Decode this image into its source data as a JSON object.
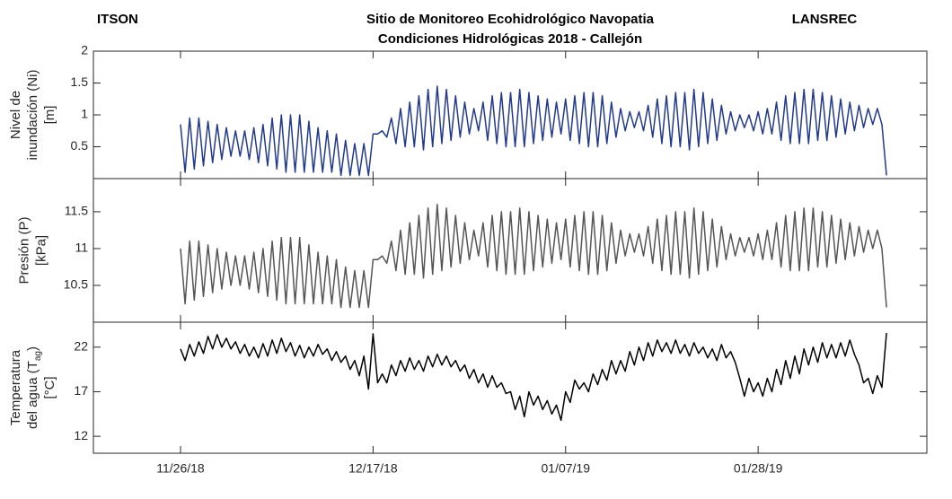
{
  "chart_data": {
    "type": "line",
    "left_label": "ITSON",
    "title": "Sitio de Monitoreo Ecohidrológico Navopatia",
    "subtitle": "Condiciones Hidrológicas 2018 - Callejón",
    "right_label": "LANSREC",
    "xlim": [
      -9.5,
      81.4
    ],
    "xticks": [
      {
        "value": 0,
        "label": "11/26/18"
      },
      {
        "value": 21,
        "label": "12/17/18"
      },
      {
        "value": 42,
        "label": "01/07/19"
      },
      {
        "value": 63,
        "label": "01/28/19"
      }
    ],
    "x": [
      0,
      0.5,
      1,
      1.5,
      2,
      2.5,
      3,
      3.5,
      4,
      4.5,
      5,
      5.5,
      6,
      6.5,
      7,
      7.5,
      8,
      8.5,
      9,
      9.5,
      10,
      10.5,
      11,
      11.5,
      12,
      12.5,
      13,
      13.5,
      14,
      14.5,
      15,
      15.5,
      16,
      16.5,
      17,
      17.5,
      18,
      18.5,
      19,
      19.5,
      20,
      20.5,
      21,
      21.5,
      22,
      22.5,
      23,
      23.5,
      24,
      24.5,
      25,
      25.5,
      26,
      26.5,
      27,
      27.5,
      28,
      28.5,
      29,
      29.5,
      30,
      30.5,
      31,
      31.5,
      32,
      32.5,
      33,
      33.5,
      34,
      34.5,
      35,
      35.5,
      36,
      36.5,
      37,
      37.5,
      38,
      38.5,
      39,
      39.5,
      40,
      40.5,
      41,
      41.5,
      42,
      42.5,
      43,
      43.5,
      44,
      44.5,
      45,
      45.5,
      46,
      46.5,
      47,
      47.5,
      48,
      48.5,
      49,
      49.5,
      50,
      50.5,
      51,
      51.5,
      52,
      52.5,
      53,
      53.5,
      54,
      54.5,
      55,
      55.5,
      56,
      56.5,
      57,
      57.5,
      58,
      58.5,
      59,
      59.5,
      60,
      60.5,
      61,
      61.5,
      62,
      62.5,
      63,
      63.5,
      64,
      64.5,
      65,
      65.5,
      66,
      66.5,
      67,
      67.5,
      68,
      68.5,
      69,
      69.5,
      70,
      70.5,
      71,
      71.5,
      72,
      72.5,
      73,
      73.5,
      74,
      74.5,
      75,
      75.5,
      76,
      76.5,
      77
    ],
    "panels": [
      {
        "ylabel": [
          [
            "Nivel de"
          ],
          [
            "inundación (Ni)"
          ],
          [
            "[m]"
          ]
        ],
        "ylim": [
          0,
          2
        ],
        "yticks": [
          0.5,
          1,
          1.5,
          2
        ],
        "series": [
          {
            "color": "#233a8c",
            "values": [
              0.85,
              0.1,
              0.95,
              0.15,
              0.95,
              0.2,
              0.9,
              0.25,
              0.85,
              0.3,
              0.8,
              0.35,
              0.75,
              0.35,
              0.75,
              0.3,
              0.8,
              0.25,
              0.85,
              0.2,
              0.95,
              0.15,
              1.0,
              0.1,
              1.0,
              0.1,
              1.0,
              0.1,
              0.9,
              0.1,
              0.8,
              0.1,
              0.75,
              0.1,
              0.7,
              0.05,
              0.6,
              0.05,
              0.55,
              0.05,
              0.55,
              0.05,
              0.7,
              0.7,
              0.75,
              0.65,
              0.95,
              0.55,
              1.1,
              0.5,
              1.2,
              0.5,
              1.3,
              0.45,
              1.4,
              0.5,
              1.45,
              0.55,
              1.4,
              0.6,
              1.3,
              0.65,
              1.2,
              0.7,
              1.1,
              0.75,
              1.2,
              0.6,
              1.3,
              0.55,
              1.35,
              0.5,
              1.35,
              0.5,
              1.4,
              0.5,
              1.35,
              0.55,
              1.3,
              0.6,
              1.25,
              0.65,
              1.2,
              0.7,
              1.25,
              0.6,
              1.3,
              0.55,
              1.35,
              0.5,
              1.35,
              0.5,
              1.3,
              0.55,
              1.2,
              0.65,
              1.1,
              0.75,
              1.05,
              0.8,
              1.05,
              0.75,
              1.15,
              0.65,
              1.25,
              0.55,
              1.3,
              0.5,
              1.35,
              0.5,
              1.35,
              0.45,
              1.4,
              0.5,
              1.35,
              0.55,
              1.25,
              0.6,
              1.15,
              0.7,
              1.05,
              0.75,
              1.0,
              0.8,
              1.0,
              0.75,
              1.05,
              0.7,
              1.1,
              0.7,
              1.2,
              0.6,
              1.3,
              0.55,
              1.35,
              0.55,
              1.4,
              0.55,
              1.4,
              0.6,
              1.35,
              0.6,
              1.3,
              0.65,
              1.25,
              0.7,
              1.2,
              0.75,
              1.15,
              0.8,
              1.1,
              0.85,
              1.1,
              0.85,
              0.05
            ]
          }
        ]
      },
      {
        "ylabel": [
          [
            "Presión (P)"
          ],
          [
            "[kPa]"
          ]
        ],
        "ylim": [
          10,
          11.95
        ],
        "yticks": [
          10.5,
          11,
          11.5
        ],
        "series": [
          {
            "color": "#555555",
            "values": [
              11.0,
              10.25,
              11.1,
              10.3,
              11.1,
              10.35,
              11.05,
              10.4,
              11.0,
              10.45,
              10.95,
              10.5,
              10.9,
              10.5,
              10.9,
              10.45,
              10.95,
              10.4,
              11.0,
              10.35,
              11.1,
              10.3,
              11.15,
              10.25,
              11.15,
              10.25,
              11.15,
              10.25,
              11.05,
              10.25,
              10.95,
              10.25,
              10.9,
              10.25,
              10.85,
              10.2,
              10.75,
              10.2,
              10.7,
              10.2,
              10.7,
              10.2,
              10.85,
              10.85,
              10.9,
              10.8,
              11.1,
              10.7,
              11.25,
              10.65,
              11.35,
              10.65,
              11.45,
              10.6,
              11.55,
              10.65,
              11.6,
              10.7,
              11.55,
              10.75,
              11.45,
              10.8,
              11.35,
              10.85,
              11.25,
              10.9,
              11.35,
              10.75,
              11.45,
              10.7,
              11.5,
              10.65,
              11.5,
              10.65,
              11.55,
              10.65,
              11.5,
              10.7,
              11.45,
              10.75,
              11.4,
              10.8,
              11.35,
              10.85,
              11.4,
              10.75,
              11.45,
              10.7,
              11.5,
              10.65,
              11.5,
              10.65,
              11.45,
              10.7,
              11.35,
              10.8,
              11.25,
              10.9,
              11.2,
              10.95,
              11.2,
              10.9,
              11.3,
              10.8,
              11.4,
              10.7,
              11.45,
              10.65,
              11.5,
              10.65,
              11.5,
              10.6,
              11.55,
              10.65,
              11.5,
              10.7,
              11.4,
              10.75,
              11.3,
              10.85,
              11.2,
              10.9,
              11.15,
              10.95,
              11.15,
              10.9,
              11.2,
              10.85,
              11.25,
              10.85,
              11.35,
              10.75,
              11.45,
              10.7,
              11.5,
              10.7,
              11.55,
              10.7,
              11.55,
              10.75,
              11.5,
              10.75,
              11.45,
              10.8,
              11.4,
              10.85,
              11.35,
              10.9,
              11.3,
              10.95,
              11.25,
              11.0,
              11.25,
              11.0,
              10.2
            ]
          }
        ]
      },
      {
        "ylabel": [
          [
            "Temperatura"
          ],
          [
            "del agua (T",
            {
              "sub": "ag"
            },
            ")"
          ],
          [
            "[°C]"
          ]
        ],
        "ylim": [
          10.1,
          24.8
        ],
        "yticks": [
          12,
          17,
          22
        ],
        "series": [
          {
            "color": "#000000",
            "values": [
              21.8,
              20.5,
              22.3,
              21.0,
              22.6,
              21.3,
              23.2,
              21.8,
              23.4,
              22.0,
              23.0,
              21.8,
              22.6,
              21.3,
              22.3,
              21.0,
              22.0,
              20.8,
              22.4,
              21.0,
              22.8,
              21.3,
              23.0,
              21.5,
              22.5,
              21.0,
              22.2,
              20.8,
              22.0,
              21.0,
              22.3,
              21.2,
              21.8,
              20.5,
              21.5,
              20.3,
              21.0,
              19.5,
              20.5,
              18.8,
              21.0,
              17.3,
              23.5,
              18.0,
              19.0,
              18.0,
              20.0,
              18.8,
              20.5,
              19.3,
              20.8,
              19.5,
              20.5,
              19.3,
              21.0,
              19.8,
              21.2,
              20.0,
              21.0,
              19.8,
              20.5,
              19.3,
              20.0,
              18.5,
              19.5,
              18.0,
              19.0,
              17.5,
              18.8,
              17.5,
              18.0,
              16.8,
              17.0,
              15.0,
              16.5,
              14.2,
              17.0,
              15.5,
              16.5,
              15.0,
              16.0,
              14.5,
              15.5,
              13.8,
              17.0,
              15.8,
              18.3,
              17.3,
              18.0,
              17.0,
              19.0,
              17.8,
              19.5,
              18.3,
              20.5,
              19.0,
              20.5,
              19.3,
              21.5,
              20.0,
              22.0,
              20.5,
              22.5,
              21.0,
              22.8,
              21.5,
              22.5,
              21.3,
              22.8,
              21.3,
              22.3,
              21.0,
              22.5,
              21.3,
              22.0,
              20.8,
              21.8,
              20.5,
              22.3,
              20.8,
              21.5,
              20.3,
              18.5,
              16.5,
              18.5,
              17.0,
              18.0,
              16.5,
              18.5,
              17.0,
              19.5,
              17.8,
              20.5,
              18.5,
              21.0,
              19.0,
              21.8,
              20.0,
              22.0,
              20.3,
              22.5,
              20.8,
              22.3,
              20.8,
              22.5,
              21.0,
              22.8,
              21.2,
              20.0,
              18.0,
              18.5,
              16.8,
              18.8,
              17.5,
              23.6
            ]
          }
        ]
      }
    ]
  }
}
